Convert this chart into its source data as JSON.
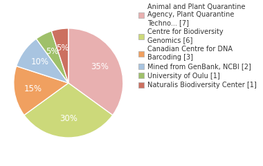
{
  "labels": [
    "Animal and Plant Quarantine\nAgency, Plant Quarantine\nTechno... [7]",
    "Centre for Biodiversity\nGenomics [6]",
    "Canadian Centre for DNA\nBarcoding [3]",
    "Mined from GenBank, NCBI [2]",
    "University of Oulu [1]",
    "Naturalis Biodiversity Center [1]"
  ],
  "values": [
    35,
    30,
    15,
    10,
    5,
    5
  ],
  "colors": [
    "#e8b0b0",
    "#ccd97a",
    "#f0a060",
    "#a8c4e0",
    "#9fc06a",
    "#cc7060"
  ],
  "startangle": 90,
  "wedge_edge_color": "white",
  "background_color": "#ffffff",
  "text_color": "#333333",
  "legend_fontsize": 7.0,
  "autopct_fontsize": 8.5,
  "pctdistance": 0.65
}
